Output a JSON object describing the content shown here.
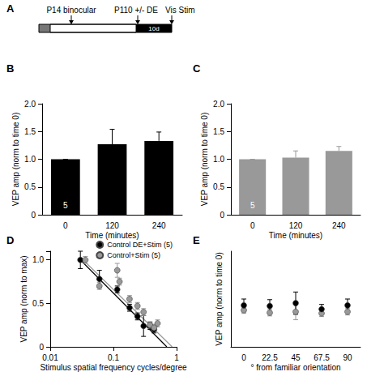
{
  "diagram": {
    "title": "A",
    "labels": [
      "P14 binocular",
      "P110 +/- DE",
      "Vis Stim"
    ],
    "box_label": "10d"
  },
  "chart_data": [
    {
      "title": "B",
      "type": "bar",
      "categories": [
        "0",
        "120",
        "240"
      ],
      "values": [
        1.0,
        1.27,
        1.33
      ],
      "errors": [
        0,
        0.27,
        0.16
      ],
      "color": "#000000",
      "annotations": [
        {
          "text": "5",
          "x": "0"
        }
      ],
      "x_label": "Time (minutes)",
      "y_label": "VEP amp (norm to time 0)",
      "ylim": [
        0,
        2
      ],
      "yticks": [
        0,
        0.5,
        {
          "value": 1,
          "label": "1.0"
        },
        1.5,
        {
          "value": 2,
          "label": "2.0"
        }
      ],
      "grid": false
    },
    {
      "title": "C",
      "type": "bar",
      "categories": [
        "0",
        "120",
        "240"
      ],
      "values": [
        1.0,
        1.03,
        1.15
      ],
      "errors": [
        0,
        0.12,
        0.08
      ],
      "color": "#999999",
      "annotations": [
        {
          "text": "5",
          "x": "0"
        }
      ],
      "x_label": "Time (minutes)",
      "y_label": "VEP amp (norm to time 0)",
      "ylim": [
        0,
        2
      ],
      "yticks": [
        0,
        0.5,
        {
          "value": 1,
          "label": "1.0"
        },
        1.5,
        {
          "value": 2,
          "label": "2.0"
        }
      ],
      "grid": false
    },
    {
      "title": "D",
      "type": "scatter",
      "x_label": "Stimulus spatial frequency cycles/degree",
      "y_label": "VEP amp (norm to max)",
      "log": "x",
      "xlim": [
        0.01,
        1
      ],
      "xticks": [
        0.01,
        0.1,
        1
      ],
      "ylim": [
        0,
        1.1
      ],
      "yticks": [
        0,
        0.5,
        {
          "value": 1,
          "label": "1.0"
        }
      ],
      "legend": "upper right",
      "grid": false,
      "series": [
        {
          "name": "Control DE+Stim (5)",
          "color": "#000000",
          "marker": "circle",
          "x": [
            0.03,
            0.06,
            0.115,
            0.18,
            0.24,
            0.3,
            0.38,
            0.44
          ],
          "values": [
            1.0,
            0.78,
            0.66,
            0.45,
            0.35,
            0.24,
            0.24,
            0.2
          ],
          "errors": [
            0.1,
            0.1,
            0.04,
            0.04,
            0.04,
            0.12,
            0.04,
            0.04
          ],
          "fit": {
            "x": [
              0.03,
              0.7
            ],
            "values": [
              1.0,
              0
            ],
            "line_style": "solid"
          }
        },
        {
          "name": "Control+Stim (5)",
          "color": "#999999",
          "marker": "circle",
          "x": [
            0.036,
            0.06,
            0.115,
            0.125,
            0.18,
            0.24,
            0.3,
            0.38,
            0.44,
            0.5
          ],
          "values": [
            1.0,
            0.7,
            0.88,
            0.75,
            0.55,
            0.47,
            0.4,
            0.25,
            0.22,
            0.27
          ],
          "errors": [
            0.04,
            0.04,
            0.08,
            0.04,
            0.04,
            0.04,
            0.04,
            0.04,
            0.04,
            0.04
          ],
          "fit": {
            "x": [
              0.03,
              0.85
            ],
            "values": [
              1.03,
              0
            ],
            "line_style": "solid"
          }
        }
      ]
    },
    {
      "title": "E",
      "type": "scatter",
      "categories": [
        "0",
        "22.5",
        "45",
        "67.5",
        "90"
      ],
      "x_label": "° from familiar orientation",
      "y_label": "VEP amp (norm to time 0)",
      "ylim": [
        0,
        3
      ],
      "tick_labels": "x",
      "grid": false,
      "series": [
        {
          "color": "#999999",
          "marker": "circle",
          "values": [
            1.15,
            1.07,
            1.1,
            1.05,
            1.1
          ],
          "errors": [
            0.1,
            0.1,
            0.25,
            0.1,
            0.1
          ]
        },
        {
          "color": "#000000",
          "marker": "circle",
          "values": [
            1.3,
            1.28,
            1.37,
            1.18,
            1.3
          ],
          "errors": [
            0.2,
            0.2,
            0.35,
            0.15,
            0.2
          ]
        }
      ]
    }
  ]
}
